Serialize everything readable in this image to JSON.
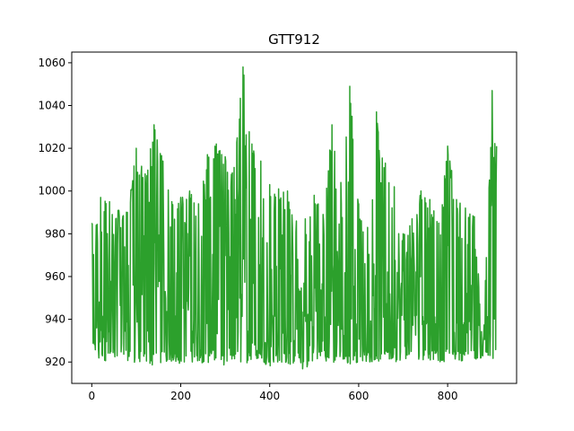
{
  "chart_data": {
    "type": "line",
    "title": "GTT912",
    "xlabel": "",
    "ylabel": "",
    "xlim": [
      -45,
      955
    ],
    "ylim": [
      910,
      1065
    ],
    "x_ticks": [
      0,
      200,
      400,
      600,
      800
    ],
    "y_ticks": [
      920,
      940,
      960,
      980,
      1000,
      1020,
      1040,
      1060
    ],
    "grid": false,
    "legend": "none",
    "series": [
      {
        "color": "#2ca02c",
        "x_start": 0,
        "x_end": 910,
        "envelope_x": [
          0,
          10,
          20,
          40,
          60,
          80,
          100,
          120,
          140,
          160,
          180,
          200,
          220,
          240,
          260,
          280,
          300,
          320,
          340,
          360,
          380,
          400,
          420,
          440,
          460,
          480,
          500,
          520,
          540,
          560,
          580,
          600,
          620,
          640,
          660,
          680,
          700,
          720,
          740,
          760,
          780,
          800,
          820,
          840,
          860,
          880,
          900,
          910
        ],
        "envelope_high": [
          985,
          984,
          997,
          995,
          991,
          990,
          1020,
          1008,
          1031,
          1014,
          995,
          997,
          1000,
          994,
          1017,
          1022,
          1016,
          1011,
          1058,
          1022,
          1014,
          1003,
          1001,
          1000,
          986,
          987,
          998,
          989,
          1031,
          1004,
          1049,
          994,
          983,
          1037,
          1013,
          1002,
          980,
          987,
          1000,
          996,
          985,
          1021,
          996,
          992,
          988,
          930,
          1047,
          1021
        ],
        "envelope_low": [
          925,
          920,
          920,
          921,
          921,
          920,
          919,
          920,
          918,
          919,
          920,
          919,
          920,
          920,
          919,
          921,
          918,
          920,
          919,
          920,
          920,
          918,
          920,
          919,
          918,
          916,
          919,
          920,
          919,
          920,
          919,
          920,
          920,
          920,
          921,
          920,
          921,
          922,
          921,
          921,
          920,
          920,
          920,
          921,
          921,
          922,
          921,
          922
        ]
      }
    ]
  }
}
